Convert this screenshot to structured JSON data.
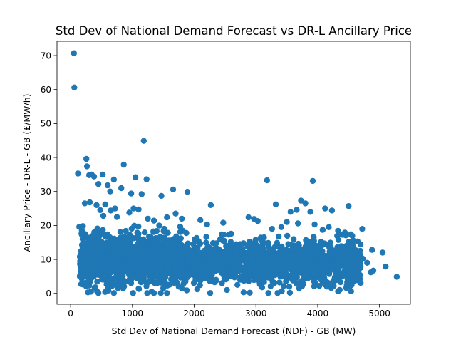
{
  "chart_data": {
    "type": "scatter",
    "title": "Std Dev of National Demand Forecast vs DR-L Ancillary Price",
    "xlabel": "Std Dev of National Demand Forecast (NDF) - GB (MW)",
    "ylabel": "Ancillary Price - DR-L - GB (£/MW/h)",
    "xlim": [
      -220,
      5500
    ],
    "ylim": [
      -3.2,
      74.2
    ],
    "xticks": [
      {
        "value": 0,
        "label": "0"
      },
      {
        "value": 1000,
        "label": "1000"
      },
      {
        "value": 2000,
        "label": "2000"
      },
      {
        "value": 3000,
        "label": "3000"
      },
      {
        "value": 4000,
        "label": "4000"
      },
      {
        "value": 5000,
        "label": "5000"
      }
    ],
    "yticks": [
      {
        "value": 0,
        "label": "0"
      },
      {
        "value": 10,
        "label": "10"
      },
      {
        "value": 20,
        "label": "20"
      },
      {
        "value": 30,
        "label": "30"
      },
      {
        "value": 40,
        "label": "40"
      },
      {
        "value": 50,
        "label": "50"
      },
      {
        "value": 60,
        "label": "60"
      },
      {
        "value": 70,
        "label": "70"
      }
    ],
    "grid": false,
    "color": "#1f77b4",
    "points": [
      [
        55,
        70.7
      ],
      [
        60,
        60.6
      ],
      [
        120,
        35.3
      ],
      [
        255,
        39.6
      ],
      [
        265,
        37.4
      ],
      [
        860,
        37.9
      ],
      [
        1185,
        44.9
      ],
      [
        3180,
        33.3
      ],
      [
        3920,
        33.1
      ],
      [
        300,
        34.8
      ],
      [
        340,
        35.0
      ],
      [
        380,
        34.4
      ],
      [
        520,
        35.0
      ],
      [
        450,
        32.2
      ],
      [
        600,
        31.8
      ],
      [
        700,
        33.5
      ],
      [
        820,
        31.0
      ],
      [
        1050,
        34.2
      ],
      [
        1150,
        29.2
      ],
      [
        1230,
        33.6
      ],
      [
        980,
        29.4
      ],
      [
        640,
        30.0
      ],
      [
        1470,
        28.7
      ],
      [
        1660,
        30.6
      ],
      [
        1890,
        29.9
      ],
      [
        2270,
        26.0
      ],
      [
        3320,
        26.2
      ],
      [
        3730,
        27.3
      ],
      [
        3800,
        26.5
      ],
      [
        3880,
        24.0
      ],
      [
        4120,
        25.0
      ],
      [
        4230,
        24.4
      ],
      [
        4500,
        25.7
      ],
      [
        3560,
        24.0
      ],
      [
        3660,
        24.6
      ],
      [
        2880,
        22.4
      ],
      [
        2970,
        21.9
      ],
      [
        4720,
        19.0
      ],
      [
        4880,
        12.8
      ],
      [
        5050,
        12.0
      ],
      [
        5280,
        4.9
      ],
      [
        5100,
        7.9
      ],
      [
        4900,
        6.7
      ],
      [
        4860,
        6.2
      ],
      [
        4540,
        0.6
      ],
      [
        4330,
        0.6
      ],
      [
        3550,
        0.2
      ],
      [
        3350,
        0.1
      ],
      [
        3200,
        0.1
      ],
      [
        2900,
        0.2
      ],
      [
        2800,
        0.3
      ],
      [
        2530,
        1.0
      ],
      [
        2260,
        0.1
      ],
      [
        1560,
        0.1
      ],
      [
        1460,
        0.1
      ],
      [
        1350,
        0.1
      ],
      [
        1240,
        0.1
      ],
      [
        1010,
        0.1
      ],
      [
        700,
        0.1
      ],
      [
        280,
        0.3
      ],
      [
        330,
        0.5
      ],
      [
        450,
        0.1
      ],
      [
        560,
        0.4
      ],
      [
        140,
        19.6
      ],
      [
        200,
        19.8
      ],
      [
        230,
        26.5
      ],
      [
        310,
        26.8
      ],
      [
        420,
        26.0
      ],
      [
        480,
        24.5
      ],
      [
        530,
        22.8
      ],
      [
        560,
        26.2
      ],
      [
        650,
        24.4
      ],
      [
        720,
        25.0
      ],
      [
        750,
        22.5
      ],
      [
        950,
        23.8
      ],
      [
        1020,
        25.0
      ],
      [
        1100,
        24.7
      ],
      [
        1250,
        22.0
      ],
      [
        1350,
        21.4
      ],
      [
        1560,
        22.4
      ],
      [
        1700,
        23.5
      ],
      [
        1800,
        22.0
      ],
      [
        2100,
        21.6
      ],
      [
        2210,
        20.3
      ],
      [
        2470,
        20.8
      ],
      [
        2560,
        17.3
      ],
      [
        3030,
        21.3
      ],
      [
        3130,
        16.5
      ],
      [
        3260,
        19.0
      ],
      [
        3410,
        19.5
      ],
      [
        3500,
        21.0
      ],
      [
        3680,
        20.6
      ],
      [
        3950,
        20.3
      ],
      [
        4080,
        18.7
      ],
      [
        4180,
        19.5
      ],
      [
        4330,
        18.4
      ],
      [
        4440,
        17.9
      ],
      [
        4580,
        15.5
      ],
      [
        4630,
        12.5
      ],
      [
        4730,
        10.2
      ],
      [
        4800,
        9.0
      ],
      [
        4690,
        8.4
      ],
      [
        4650,
        6.0
      ],
      [
        4610,
        4.5
      ],
      [
        4470,
        2.5
      ],
      [
        4370,
        3.3
      ],
      [
        4150,
        2.0
      ],
      [
        3960,
        3.0
      ],
      [
        3700,
        1.5
      ],
      [
        3450,
        2.2
      ],
      [
        3100,
        1.8
      ],
      [
        2700,
        2.5
      ],
      [
        2450,
        3.0
      ],
      [
        2050,
        1.2
      ],
      [
        1750,
        2.0
      ],
      [
        1500,
        1.5
      ],
      [
        1100,
        1.4
      ],
      [
        850,
        1.5
      ],
      [
        600,
        1.6
      ],
      [
        400,
        1.8
      ],
      [
        200,
        2.6
      ],
      [
        150,
        5.0
      ]
    ]
  }
}
